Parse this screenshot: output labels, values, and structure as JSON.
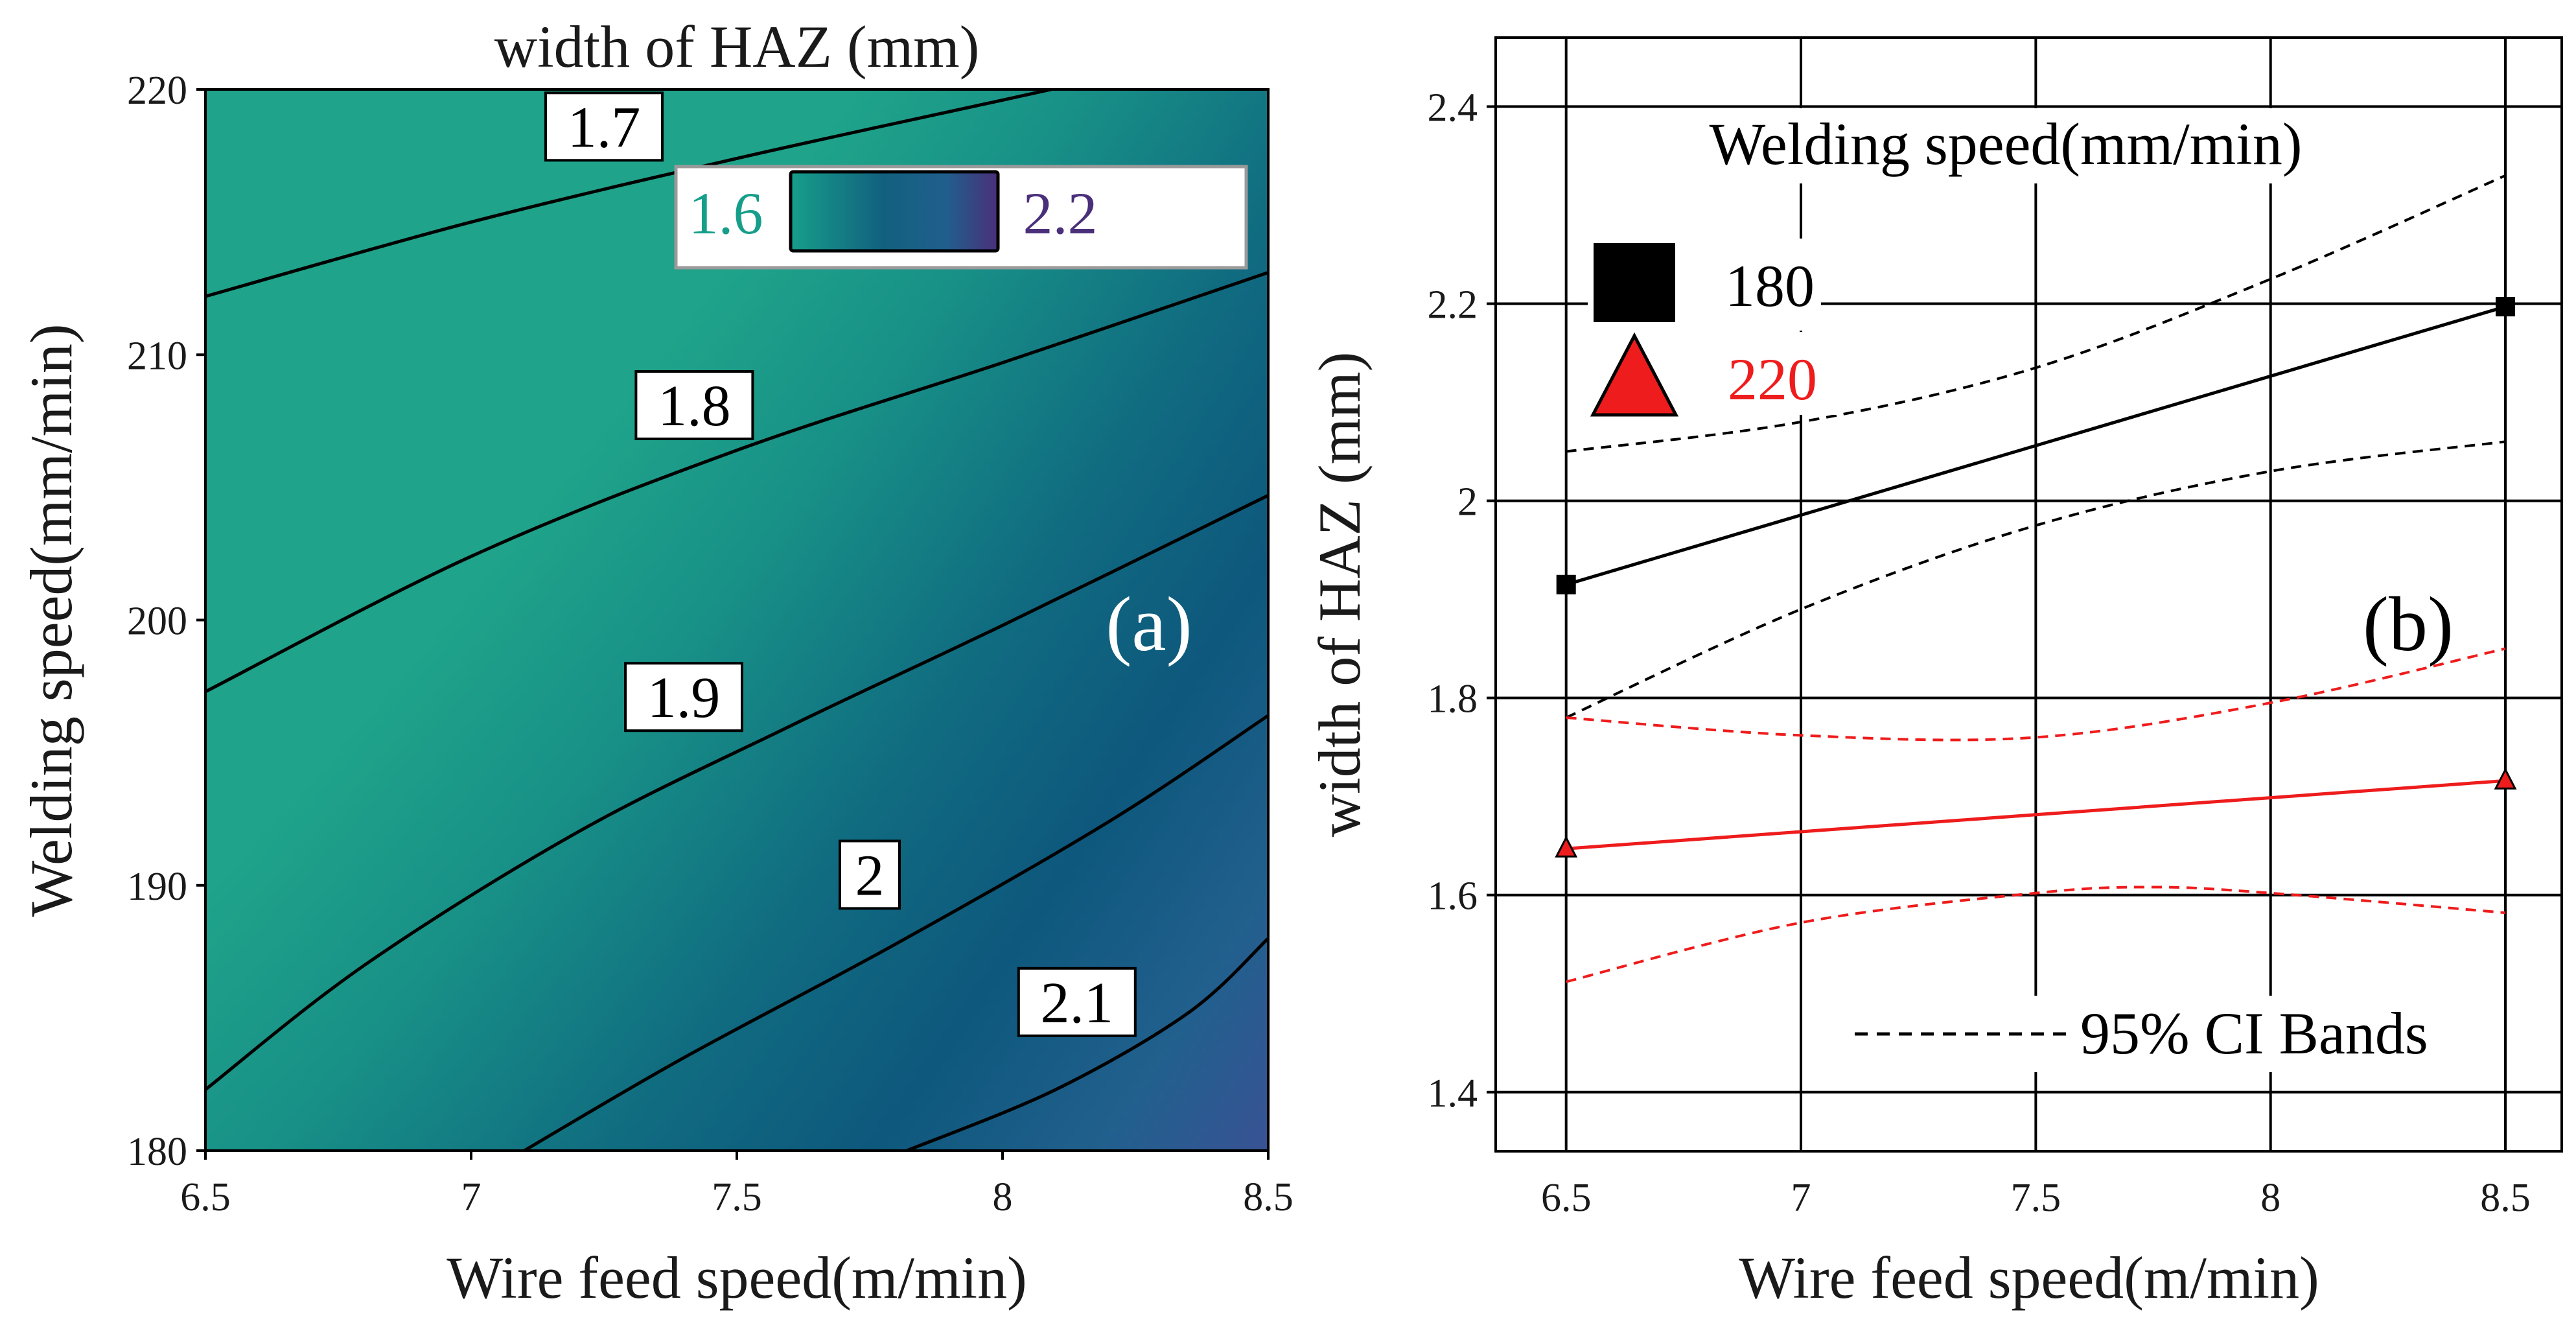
{
  "chart_data": [
    {
      "type": "heatmap",
      "panel_tag": "(a)",
      "title": "width of HAZ (mm)",
      "xlabel": "Wire feed speed(m/min)",
      "ylabel": "Welding speed(mm/min)",
      "xlim": [
        6.5,
        8.5
      ],
      "ylim": [
        180,
        220
      ],
      "xticks": [
        "6.5",
        "7",
        "7.5",
        "8",
        "8.5"
      ],
      "yticks": [
        "180",
        "190",
        "200",
        "210",
        "220"
      ],
      "colorbar": {
        "min_label": "1.6",
        "max_label": "2.2",
        "min_color": "#169e8a",
        "max_color": "#4a2f7a"
      },
      "contours": [
        {
          "level": "1.7",
          "points": [
            [
              6.5,
              212.2
            ],
            [
              7.0,
              215.0
            ],
            [
              7.5,
              217.4
            ],
            [
              8.0,
              219.6
            ],
            [
              8.5,
              221.8
            ]
          ],
          "label_at": [
            7.25,
            218.6
          ]
        },
        {
          "level": "1.8",
          "points": [
            [
              6.5,
              197.3
            ],
            [
              7.0,
              202.4
            ],
            [
              7.5,
              206.4
            ],
            [
              8.0,
              209.7
            ],
            [
              8.5,
              213.1
            ]
          ],
          "label_at": [
            7.42,
            208.1
          ]
        },
        {
          "level": "1.9",
          "points": [
            [
              6.5,
              182.3
            ],
            [
              6.8,
              187.0
            ],
            [
              7.2,
              192.0
            ],
            [
              7.6,
              196.0
            ],
            [
              8.0,
              199.8
            ],
            [
              8.5,
              204.7
            ]
          ],
          "label_at": [
            7.4,
            197.1
          ]
        },
        {
          "level": "2",
          "points": [
            [
              7.1,
              180.0
            ],
            [
              7.4,
              183.5
            ],
            [
              7.8,
              187.8
            ],
            [
              8.2,
              192.4
            ],
            [
              8.5,
              196.4
            ]
          ],
          "label_at": [
            7.75,
            190.4
          ]
        },
        {
          "level": "2.1",
          "points": [
            [
              7.82,
              180.0
            ],
            [
              8.1,
              182.3
            ],
            [
              8.35,
              185.2
            ],
            [
              8.5,
              188.0
            ]
          ],
          "label_at": [
            8.14,
            185.6
          ]
        }
      ]
    },
    {
      "type": "line",
      "panel_tag": "(b)",
      "xlabel": "Wire feed speed(m/min)",
      "ylabel": "width of HAZ (mm)",
      "xlim": [
        6.35,
        8.62
      ],
      "ylim": [
        1.34,
        2.47
      ],
      "xticks": [
        "6.5",
        "7",
        "7.5",
        "8",
        "8.5"
      ],
      "yticks": [
        "1.4",
        "1.6",
        "1.8",
        "2",
        "2.2",
        "2.4"
      ],
      "grid": true,
      "legend": {
        "title": "Welding speed(mm/min)",
        "placement": "top-left",
        "ci_label": "95% CI Bands"
      },
      "series": [
        {
          "name": "180",
          "color": "#000000",
          "marker": "square",
          "x": [
            6.5,
            8.5
          ],
          "y": [
            1.915,
            2.197
          ],
          "ci_upper": [
            [
              6.5,
              2.05
            ],
            [
              7.0,
              2.08
            ],
            [
              7.5,
              2.135
            ],
            [
              8.0,
              2.225
            ],
            [
              8.5,
              2.33
            ]
          ],
          "ci_lower": [
            [
              6.5,
              1.78
            ],
            [
              7.0,
              1.89
            ],
            [
              7.5,
              1.975
            ],
            [
              8.0,
              2.03
            ],
            [
              8.5,
              2.06
            ]
          ]
        },
        {
          "name": "220",
          "color": "#ee1c1c",
          "marker": "triangle",
          "x": [
            6.5,
            8.5
          ],
          "y": [
            1.647,
            1.716
          ],
          "ci_upper": [
            [
              6.5,
              1.78
            ],
            [
              7.0,
              1.762
            ],
            [
              7.5,
              1.76
            ],
            [
              8.0,
              1.795
            ],
            [
              8.5,
              1.85
            ]
          ],
          "ci_lower": [
            [
              6.5,
              1.512
            ],
            [
              7.0,
              1.572
            ],
            [
              7.5,
              1.602
            ],
            [
              7.75,
              1.608
            ],
            [
              8.0,
              1.602
            ],
            [
              8.5,
              1.582
            ]
          ]
        }
      ]
    }
  ]
}
